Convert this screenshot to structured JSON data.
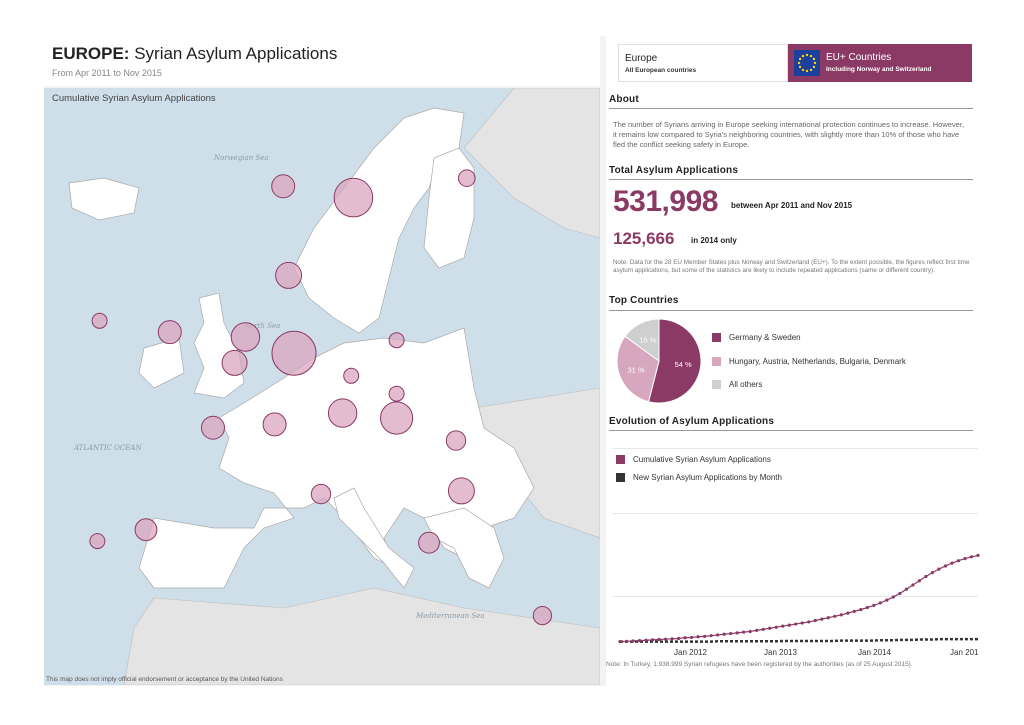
{
  "header": {
    "title_bold": "EUROPE:",
    "title_rest": " Syrian Asylum Applications",
    "subtitle": "From Apr 2011 to Nov 2015"
  },
  "map": {
    "title": "Cumulative Syrian Asylum Applications",
    "footer": "This map does not imply official endorsement or acceptance by the United Nations",
    "seas": {
      "norwegian": "Norwegian Sea",
      "north": "North Sea",
      "atlantic": "ATLANTIC OCEAN",
      "med": "Mediterranean Sea"
    }
  },
  "region_toggle": {
    "europe_title": "Europe",
    "europe_sub": "All European countries",
    "eu_title": "EU+ Countries",
    "eu_sub": "Including Norway and Switzerland"
  },
  "about": {
    "heading": "About",
    "text": "The number of Syrians arriving in Europe seeking international protection continues to increase. However, it remains low compared to Syria's neighboring countries, with slightly more than 10% of those who have fled the conflict seeking safety in Europe."
  },
  "totals": {
    "heading": "Total Asylum Applications",
    "total_value": "531,998",
    "total_label": "between Apr 2011 and Nov 2015",
    "year_value": "125,666",
    "year_label": "in 2014 only",
    "note": "Note: Data for the 28 EU Member States plus Norway and Switzerland (EU+). To the extent possible, the figures reflect first time asylum applications, but some of the statistics are likely to include repeated applications (same or different country)."
  },
  "top_countries": {
    "heading": "Top Countries",
    "slices": [
      {
        "label": "Germany & Sweden",
        "percent": 54,
        "pct_label": "54 %",
        "color": "#8b3a66"
      },
      {
        "label": "Hungary, Austria, Netherlands, Bulgaria, Denmark",
        "percent": 31,
        "pct_label": "31 %",
        "color": "#d6a7bf"
      },
      {
        "label": "All others",
        "percent": 15,
        "pct_label": "15 %",
        "color": "#cfcfcf"
      }
    ]
  },
  "evolution": {
    "heading": "Evolution of Asylum Applications",
    "legend": [
      {
        "label": "Cumulative Syrian Asylum Applications",
        "color": "#8b3a66"
      },
      {
        "label": "New Syrian Asylum Applications by Month",
        "color": "#333333"
      }
    ],
    "x_labels": [
      "Jan 2012",
      "Jan 2013",
      "Jan 2014",
      "Jan 201"
    ],
    "footnote": "Note: In Turkey, 1,938,999 Syrian refugees have been registered by the authorities (as of 25 August 2015)."
  },
  "chart_data": {
    "type": "line",
    "x_unit": "month",
    "x_start": "2011-04",
    "x_end": "2015-11",
    "series": [
      {
        "name": "Cumulative Syrian Asylum Applications",
        "values": [
          0.01,
          0.02,
          0.03,
          0.04,
          0.05,
          0.06,
          0.07,
          0.08,
          0.09,
          0.1,
          0.12,
          0.13,
          0.15,
          0.16,
          0.18,
          0.2,
          0.22,
          0.24,
          0.26,
          0.28,
          0.3,
          0.33,
          0.36,
          0.39,
          0.42,
          0.45,
          0.48,
          0.51,
          0.54,
          0.57,
          0.61,
          0.65,
          0.69,
          0.73,
          0.77,
          0.82,
          0.87,
          0.92,
          0.98,
          1.04,
          1.11,
          1.19,
          1.28,
          1.38,
          1.5,
          1.62,
          1.74,
          1.86,
          1.97,
          2.07,
          2.16,
          2.24,
          2.31,
          2.37,
          2.42,
          2.46
        ]
      },
      {
        "name": "New Syrian Asylum Applications by Month",
        "values": [
          0.01,
          0.01,
          0.01,
          0.01,
          0.01,
          0.01,
          0.01,
          0.01,
          0.01,
          0.01,
          0.01,
          0.01,
          0.01,
          0.01,
          0.01,
          0.02,
          0.02,
          0.02,
          0.02,
          0.02,
          0.02,
          0.02,
          0.02,
          0.02,
          0.02,
          0.03,
          0.03,
          0.03,
          0.03,
          0.03,
          0.03,
          0.03,
          0.03,
          0.03,
          0.04,
          0.04,
          0.04,
          0.04,
          0.04,
          0.04,
          0.05,
          0.05,
          0.05,
          0.06,
          0.06,
          0.06,
          0.07,
          0.07,
          0.07,
          0.08,
          0.08,
          0.08,
          0.08,
          0.08,
          0.08,
          0.08
        ]
      }
    ]
  },
  "bubbles": [
    {
      "country": "Sweden",
      "lon": 15.5,
      "lat": 60.8,
      "size": 3
    },
    {
      "country": "Germany",
      "lon": 10.0,
      "lat": 51.2,
      "size": 4
    },
    {
      "country": "Hungary",
      "lon": 19.5,
      "lat": 47.2,
      "size": 2
    },
    {
      "country": "Austria",
      "lon": 14.5,
      "lat": 47.5,
      "size": 1.5
    },
    {
      "country": "Netherlands",
      "lon": 5.5,
      "lat": 52.2,
      "size": 1.5
    },
    {
      "country": "Bulgaria",
      "lon": 25.5,
      "lat": 42.7,
      "size": 1.2
    },
    {
      "country": "Denmark",
      "lon": 9.5,
      "lat": 56.0,
      "size": 1.2
    },
    {
      "country": "Belgium",
      "lon": 4.5,
      "lat": 50.6,
      "size": 1.1
    },
    {
      "country": "Norway",
      "lon": 9.0,
      "lat": 61.5,
      "size": 0.9
    },
    {
      "country": "United Kingdom",
      "lon": -1.5,
      "lat": 52.5,
      "size": 0.9
    },
    {
      "country": "France",
      "lon": 2.5,
      "lat": 46.6,
      "size": 0.9
    },
    {
      "country": "Switzerland",
      "lon": 8.2,
      "lat": 46.8,
      "size": 0.9
    },
    {
      "country": "Spain",
      "lon": -3.7,
      "lat": 40.3,
      "size": 0.8
    },
    {
      "country": "Greece",
      "lon": 22.5,
      "lat": 39.5,
      "size": 0.7
    },
    {
      "country": "Finland",
      "lon": 26.0,
      "lat": 62.0,
      "size": 0.4
    },
    {
      "country": "Poland",
      "lon": 19.5,
      "lat": 52.0,
      "size": 0.3
    },
    {
      "country": "Italy",
      "lon": 12.5,
      "lat": 42.5,
      "size": 0.6
    },
    {
      "country": "Romania",
      "lon": 25.0,
      "lat": 45.8,
      "size": 0.6
    },
    {
      "country": "Cyprus",
      "lon": 33.0,
      "lat": 35.0,
      "size": 0.5
    },
    {
      "country": "Czech Republic",
      "lon": 15.3,
      "lat": 49.8,
      "size": 0.3
    },
    {
      "country": "Slovakia",
      "lon": 19.5,
      "lat": 48.7,
      "size": 0.3
    },
    {
      "country": "Ireland",
      "lon": -8.0,
      "lat": 53.2,
      "size": 0.3
    },
    {
      "country": "Portugal",
      "lon": -8.2,
      "lat": 39.6,
      "size": 0.3
    }
  ],
  "colors": {
    "accent": "#8b3a66",
    "bubble_fill": "#d9a5bf",
    "sea": "#cfdfea",
    "land": "#ffffff"
  }
}
